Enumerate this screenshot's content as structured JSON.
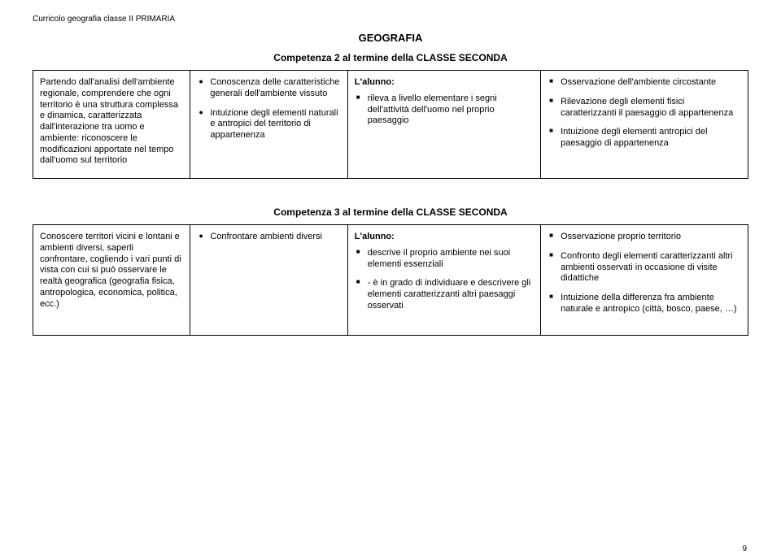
{
  "doc_header": "Curricolo geografia classe II PRIMARIA",
  "page_title": "GEOGRAFIA",
  "page_number": "9",
  "section2": {
    "title": "Competenza 2 al termine della CLASSE SECONDA",
    "col1": "Partendo dall'analisi dell'ambiente regionale, comprendere che ogni territorio è una struttura complessa e dinamica, caratterizzata dall'interazione tra uomo e ambiente: riconoscere le modificazioni apportate nel tempo dall'uomo sul territorio",
    "col2": {
      "items": [
        "Conoscenza delle caratteristiche generali dell'ambiente vissuto",
        "Intuizione degli elementi naturali e antropici del territorio di appartenenza"
      ]
    },
    "col3": {
      "label": "L'alunno:",
      "items": [
        "rileva a livello elementare i segni dell'attività dell'uomo nel proprio paesaggio"
      ]
    },
    "col4": {
      "items": [
        "Osservazione dell'ambiente circostante",
        "Rilevazione degli elementi fisici caratterizzanti il paesaggio di appartenenza",
        "Intuizione degli elementi antropici del paesaggio di appartenenza"
      ]
    }
  },
  "section3": {
    "title": "Competenza 3 al termine della CLASSE SECONDA",
    "col1": "Conoscere territori vicini e lontani e ambienti diversi, saperli confrontare, cogliendo i vari punti di vista con cui si può osservare le realtà geografica (geografia fisica, antropologica, economica, politica, ecc.)",
    "col2": {
      "items": [
        "Confrontare ambienti diversi"
      ]
    },
    "col3": {
      "label": "L'alunno:",
      "items": [
        "descrive il proprio ambiente nei suoi elementi essenziali",
        "- è in grado di individuare e descrivere gli elementi caratterizzanti altri paesaggi osservati"
      ]
    },
    "col4": {
      "items": [
        "Osservazione proprio territorio",
        "Confronto degli elementi caratterizzanti altri ambienti osservati in occasione di visite didattiche",
        "Intuizione della differenza fra ambiente naturale e antropico (città, bosco, paese, …)"
      ]
    }
  }
}
